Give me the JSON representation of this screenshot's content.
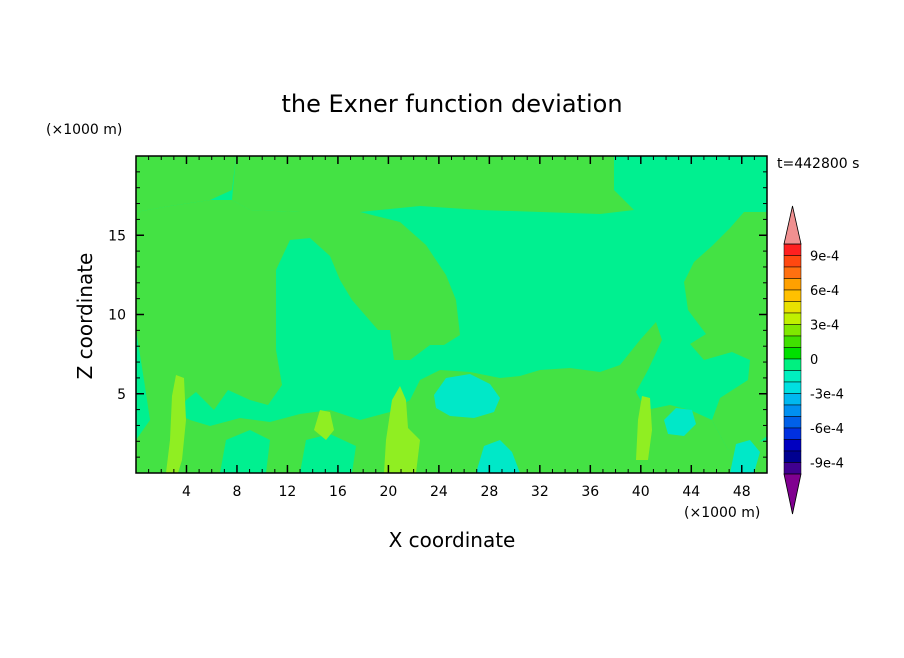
{
  "chart_data": {
    "type": "contour",
    "title": "the Exner function deviation",
    "xlabel": "X coordinate",
    "ylabel": "Z coordinate",
    "x_unit": "(×1000 m)",
    "y_unit": "(×1000 m)",
    "time_label": "t=442800 s",
    "xlim": [
      0,
      50
    ],
    "ylim": [
      0,
      20
    ],
    "x_ticks": [
      4,
      8,
      12,
      16,
      20,
      24,
      28,
      32,
      36,
      40,
      44,
      48
    ],
    "y_ticks": [
      5,
      10,
      15
    ],
    "colorbar": {
      "min": -0.0011,
      "max": 0.0011,
      "step": 0.0001,
      "labeled_levels": [
        0.0009,
        0.0006,
        0.0003,
        0,
        -0.0003,
        -0.0006,
        -0.0009
      ],
      "labels": [
        "9e-4",
        "6e-4",
        "3e-4",
        "0",
        "-3e-4",
        "-6e-4",
        "-9e-4"
      ],
      "colors": [
        "#f09090",
        "#ff2020",
        "#ff4810",
        "#ff7010",
        "#ffa000",
        "#ffc000",
        "#e8e000",
        "#c0f000",
        "#80e800",
        "#40e000",
        "#00e000",
        "#00f080",
        "#00f0c0",
        "#00e0e0",
        "#00b8f0",
        "#0090f0",
        "#0060e8",
        "#0030e0",
        "#0000c0",
        "#000090",
        "#400090",
        "#800090"
      ]
    },
    "regions": [
      {
        "level": "0 to 1e-4",
        "color": "#44e244",
        "description": "upper band above z≈16.5 and left half of domain, band around x≈22-27"
      },
      {
        "level": "-1e-4 to 0",
        "color": "#00f090",
        "description": "background field in middle and top-right"
      },
      {
        "level": "1e-4 to 2e-4",
        "color": "#90ee22",
        "description": "small plumes near x≈3, 14, 20-22, 40"
      },
      {
        "level": "-2e-4 to -1e-4",
        "color": "#00e8c8",
        "description": "patches near x≈24-30, z≈4-6 and near surface"
      }
    ]
  }
}
